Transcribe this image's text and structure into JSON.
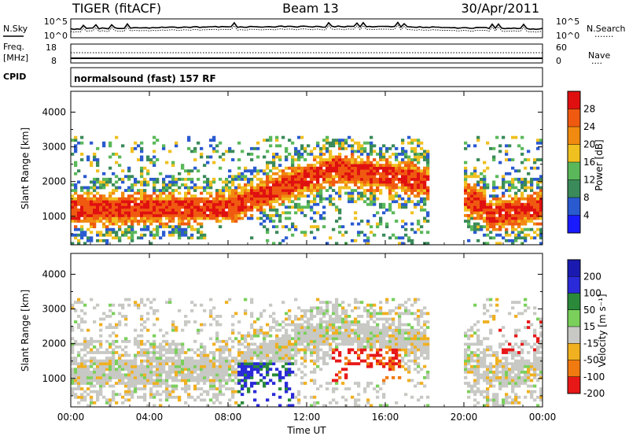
{
  "header": {
    "radar": "TIGER (fitACF)",
    "beam": "Beam 13",
    "date": "30/Apr/2011"
  },
  "sky_panel": {
    "left_label": "N.Sky",
    "left_ticks": [
      "10^5",
      "10^0"
    ],
    "right_ticks": [
      "10^5",
      "10^0"
    ],
    "right_label": "N.Search",
    "right_legend": "·······"
  },
  "freq_panel": {
    "left_label_1": "Freq.",
    "left_label_2": "[MHz]",
    "left_ticks": [
      "18",
      "8"
    ],
    "right_ticks": [
      "60",
      "0"
    ],
    "right_label": "Nave",
    "right_legend": "····"
  },
  "cpid_panel": {
    "label": "CPID",
    "text": "normalsound (fast) 157 RF"
  },
  "colors": {
    "power": [
      "#1a1aff",
      "#2a5ad0",
      "#3a8a5a",
      "#5ab85a",
      "#f0c020",
      "#f08a10",
      "#f05a10",
      "#e01010"
    ],
    "velocity": [
      "#1a1ab0",
      "#2a2ad8",
      "#2a8a3a",
      "#7ad05a",
      "#c8c8c4",
      "#f0b020",
      "#f07a10",
      "#e81818"
    ]
  },
  "chart_data": [
    {
      "type": "heatmap",
      "name": "power",
      "ylabel": "Slant Range [km]",
      "xlabel": "Time UT",
      "x_ticks": [
        "00:00",
        "04:00",
        "08:00",
        "12:00",
        "16:00",
        "20:00",
        "00:00"
      ],
      "y_ticks": [
        "1000",
        "2000",
        "3000",
        "4000"
      ],
      "ylim": [
        180,
        4600
      ],
      "colorbar": {
        "label": "Power [dB]",
        "ticks": [
          "4",
          "8",
          "12",
          "16",
          "20",
          "24",
          "28"
        ]
      }
    },
    {
      "type": "heatmap",
      "name": "velocity",
      "ylabel": "Slant Range [km]",
      "xlabel": "Time UT",
      "x_ticks": [
        "00:00",
        "04:00",
        "08:00",
        "12:00",
        "16:00",
        "20:00",
        "00:00"
      ],
      "y_ticks": [
        "1000",
        "2000",
        "3000",
        "4000"
      ],
      "ylim": [
        180,
        4600
      ],
      "colorbar": {
        "label": "Velocity [m s⁻¹]",
        "ticks": [
          "200",
          "100",
          "50",
          "15",
          "-15",
          "-50",
          "-100",
          "-200"
        ]
      }
    }
  ]
}
